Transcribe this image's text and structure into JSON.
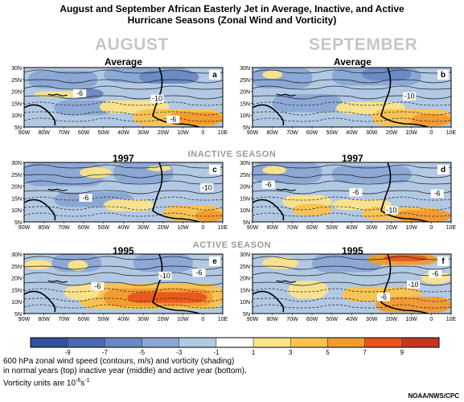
{
  "title_line1": "August and September African Easterly Jet in Average, Inactive, and Active",
  "title_line2": "Hurricane Seasons (Zonal Wind and Vorticity)",
  "col_august": "AUGUST",
  "col_september": "SEPTEMBER",
  "season_inactive": "INACTIVE SEASON",
  "season_active": "ACTIVE SEASON",
  "caption_line1": "600 hPa zonal wind speed (contours, m/s) and vorticity (shading)",
  "caption_line2": "in normal years (top) inactive year (middle) and active year (bottom).",
  "caption_line3_prefix": "Vorticity units are 10",
  "caption_line3_exp": "-6",
  "caption_line3_unit": "s",
  "caption_line3_unit_exp": "-1",
  "credit": "NOAA/NWS/CPC",
  "chart_data": {
    "type": "heatmap",
    "x_ticks": [
      "90W",
      "80W",
      "70W",
      "60W",
      "50W",
      "40W",
      "30W",
      "20W",
      "10W",
      "0",
      "10E"
    ],
    "y_ticks": [
      "30N",
      "25N",
      "20N",
      "15N",
      "10N",
      "5N"
    ],
    "colorbar": {
      "labels": [
        "-9",
        "-7",
        "-5",
        "-3",
        "-1",
        "1",
        "3",
        "5",
        "7",
        "9"
      ],
      "colors": [
        "#33509e",
        "#4b6ab2",
        "#6a88c4",
        "#8aa6d4",
        "#b2c9e4",
        "#ffffff",
        "#fbe48a",
        "#fbc24e",
        "#f29a2e",
        "#e8551b",
        "#c7351e"
      ]
    },
    "panels": [
      {
        "title": "Average",
        "letter": "a",
        "contour_labels": [
          "-6",
          "-10",
          "-6"
        ]
      },
      {
        "title": "Average",
        "letter": "b",
        "contour_labels": [
          "-10"
        ]
      },
      {
        "title": "1997",
        "letter": "c",
        "contour_labels": [
          "-6",
          "-10"
        ]
      },
      {
        "title": "1997",
        "letter": "d",
        "contour_labels": [
          "-6",
          "-6",
          "-10",
          "-6"
        ]
      },
      {
        "title": "1995",
        "letter": "e",
        "contour_labels": [
          "-6",
          "-10",
          "-6"
        ]
      },
      {
        "title": "1995",
        "letter": "f",
        "contour_labels": [
          "-10",
          "-6",
          "-6"
        ]
      }
    ]
  }
}
